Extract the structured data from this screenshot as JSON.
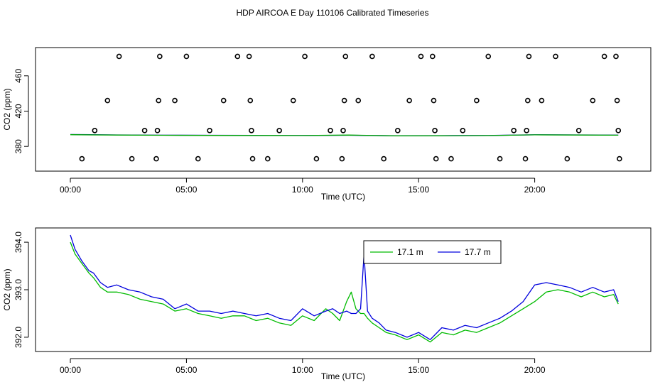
{
  "chart_data": [
    {
      "type": "scatter",
      "title": "HDP AIRCOA E  Day 110106  Calibrated Timeseries",
      "xlabel": "Time (UTC)",
      "ylabel": "CO2 (ppm)",
      "xlim": [
        -1.5,
        25.0
      ],
      "ylim": [
        352.0,
        492.0
      ],
      "x_ticks": [
        0,
        5,
        10,
        15,
        20
      ],
      "x_tick_labels": [
        "00:00",
        "05:00",
        "10:00",
        "15:00",
        "20:00"
      ],
      "y_ticks": [
        380,
        420,
        460
      ],
      "y_tick_labels": [
        "380",
        "420",
        "460"
      ],
      "marker_color": "#000000",
      "points": [
        {
          "x": 0.5,
          "y": 366
        },
        {
          "x": 1.05,
          "y": 398
        },
        {
          "x": 1.6,
          "y": 432
        },
        {
          "x": 2.1,
          "y": 482
        },
        {
          "x": 2.65,
          "y": 366
        },
        {
          "x": 3.2,
          "y": 398
        },
        {
          "x": 3.7,
          "y": 366
        },
        {
          "x": 3.75,
          "y": 398
        },
        {
          "x": 3.8,
          "y": 432
        },
        {
          "x": 3.85,
          "y": 482
        },
        {
          "x": 4.5,
          "y": 432
        },
        {
          "x": 5.0,
          "y": 482
        },
        {
          "x": 5.5,
          "y": 366
        },
        {
          "x": 6.0,
          "y": 398
        },
        {
          "x": 6.6,
          "y": 432
        },
        {
          "x": 7.2,
          "y": 482
        },
        {
          "x": 7.7,
          "y": 482
        },
        {
          "x": 7.75,
          "y": 432
        },
        {
          "x": 7.8,
          "y": 398
        },
        {
          "x": 7.85,
          "y": 366
        },
        {
          "x": 8.5,
          "y": 366
        },
        {
          "x": 9.0,
          "y": 398
        },
        {
          "x": 9.6,
          "y": 432
        },
        {
          "x": 10.1,
          "y": 482
        },
        {
          "x": 10.6,
          "y": 366
        },
        {
          "x": 11.2,
          "y": 398
        },
        {
          "x": 11.7,
          "y": 366
        },
        {
          "x": 11.75,
          "y": 398
        },
        {
          "x": 11.8,
          "y": 432
        },
        {
          "x": 11.85,
          "y": 482
        },
        {
          "x": 12.4,
          "y": 432
        },
        {
          "x": 13.0,
          "y": 482
        },
        {
          "x": 13.5,
          "y": 366
        },
        {
          "x": 14.1,
          "y": 398
        },
        {
          "x": 14.6,
          "y": 432
        },
        {
          "x": 15.1,
          "y": 482
        },
        {
          "x": 15.6,
          "y": 482
        },
        {
          "x": 15.65,
          "y": 432
        },
        {
          "x": 15.7,
          "y": 398
        },
        {
          "x": 15.75,
          "y": 366
        },
        {
          "x": 16.4,
          "y": 366
        },
        {
          "x": 16.9,
          "y": 398
        },
        {
          "x": 17.5,
          "y": 432
        },
        {
          "x": 18.0,
          "y": 482
        },
        {
          "x": 18.5,
          "y": 366
        },
        {
          "x": 19.1,
          "y": 398
        },
        {
          "x": 19.6,
          "y": 366
        },
        {
          "x": 19.65,
          "y": 398
        },
        {
          "x": 19.7,
          "y": 432
        },
        {
          "x": 19.75,
          "y": 482
        },
        {
          "x": 20.3,
          "y": 432
        },
        {
          "x": 20.9,
          "y": 482
        },
        {
          "x": 21.4,
          "y": 366
        },
        {
          "x": 21.9,
          "y": 398
        },
        {
          "x": 22.5,
          "y": 432
        },
        {
          "x": 23.0,
          "y": 482
        },
        {
          "x": 23.5,
          "y": 482
        },
        {
          "x": 23.55,
          "y": 432
        },
        {
          "x": 23.6,
          "y": 398
        },
        {
          "x": 23.65,
          "y": 366
        }
      ],
      "series": [
        {
          "color": "#0000cc",
          "x": [
            0,
            2,
            4,
            6,
            8,
            10,
            12,
            14,
            16,
            18,
            20,
            22,
            23.6
          ],
          "y": [
            393.5,
            393.0,
            392.7,
            392.6,
            392.5,
            392.4,
            392.6,
            392.1,
            392.2,
            392.4,
            393.2,
            393.0,
            392.8
          ]
        },
        {
          "color": "#00aa00",
          "x": [
            0,
            2,
            4,
            6,
            8,
            10,
            12,
            14,
            16,
            18,
            20,
            22,
            23.6
          ],
          "y": [
            393.3,
            392.9,
            392.6,
            392.5,
            392.4,
            392.3,
            392.9,
            392.0,
            392.1,
            392.3,
            393.1,
            392.9,
            392.7
          ]
        }
      ]
    },
    {
      "type": "line",
      "xlabel": "Time (UTC)",
      "ylabel": "CO2 (ppm)",
      "xlim": [
        -1.5,
        25.0
      ],
      "ylim": [
        391.7,
        394.3
      ],
      "x_ticks": [
        0,
        5,
        10,
        15,
        20
      ],
      "x_tick_labels": [
        "00:00",
        "05:00",
        "10:00",
        "15:00",
        "20:00"
      ],
      "y_ticks": [
        392.0,
        393.0,
        394.0
      ],
      "y_tick_labels": [
        "392.0",
        "393.0",
        "394.0"
      ],
      "legend": "top-center",
      "series": [
        {
          "name": "17.1 m",
          "color": "#00bb00",
          "x": [
            0,
            0.2,
            0.5,
            0.8,
            1.0,
            1.3,
            1.6,
            2.0,
            2.5,
            3.0,
            3.5,
            4.0,
            4.5,
            5.0,
            5.5,
            6.0,
            6.5,
            7.0,
            7.5,
            8.0,
            8.5,
            9.0,
            9.5,
            10.0,
            10.5,
            11.0,
            11.3,
            11.6,
            11.9,
            12.1,
            12.3,
            12.5,
            12.65,
            12.8,
            13.0,
            13.3,
            13.6,
            14.0,
            14.5,
            15.0,
            15.5,
            16.0,
            16.5,
            17.0,
            17.5,
            18.0,
            18.5,
            19.0,
            19.5,
            20.0,
            20.5,
            21.0,
            21.5,
            22.0,
            22.5,
            23.0,
            23.4,
            23.6
          ],
          "y": [
            394.0,
            393.75,
            393.55,
            393.35,
            393.25,
            393.05,
            392.95,
            392.95,
            392.9,
            392.8,
            392.75,
            392.7,
            392.55,
            392.6,
            392.5,
            392.45,
            392.4,
            392.45,
            392.45,
            392.35,
            392.4,
            392.3,
            392.25,
            392.45,
            392.35,
            392.6,
            392.5,
            392.35,
            392.75,
            392.95,
            392.6,
            392.5,
            392.5,
            392.4,
            392.3,
            392.2,
            392.1,
            392.05,
            391.95,
            392.05,
            391.9,
            392.1,
            392.05,
            392.15,
            392.1,
            392.2,
            392.3,
            392.45,
            392.6,
            392.75,
            392.95,
            393.0,
            392.95,
            392.85,
            392.95,
            392.85,
            392.9,
            392.7
          ]
        },
        {
          "name": "17.7 m",
          "color": "#0000dd",
          "x": [
            0,
            0.2,
            0.5,
            0.8,
            1.0,
            1.3,
            1.6,
            2.0,
            2.5,
            3.0,
            3.5,
            4.0,
            4.5,
            5.0,
            5.5,
            6.0,
            6.5,
            7.0,
            7.5,
            8.0,
            8.5,
            9.0,
            9.5,
            10.0,
            10.5,
            11.0,
            11.3,
            11.6,
            11.9,
            12.1,
            12.3,
            12.5,
            12.65,
            12.8,
            13.0,
            13.3,
            13.6,
            14.0,
            14.5,
            15.0,
            15.5,
            16.0,
            16.5,
            17.0,
            17.5,
            18.0,
            18.5,
            19.0,
            19.5,
            20.0,
            20.5,
            21.0,
            21.5,
            22.0,
            22.5,
            23.0,
            23.4,
            23.6
          ],
          "y": [
            394.15,
            393.85,
            393.6,
            393.4,
            393.35,
            393.15,
            393.05,
            393.1,
            393.0,
            392.95,
            392.85,
            392.8,
            392.6,
            392.7,
            392.55,
            392.55,
            392.5,
            392.55,
            392.5,
            392.45,
            392.5,
            392.4,
            392.35,
            392.6,
            392.45,
            392.55,
            392.6,
            392.5,
            392.55,
            392.5,
            392.5,
            392.6,
            393.75,
            392.55,
            392.4,
            392.3,
            392.15,
            392.1,
            392.0,
            392.1,
            391.95,
            392.2,
            392.15,
            392.25,
            392.2,
            392.3,
            392.4,
            392.55,
            392.75,
            393.1,
            393.15,
            393.1,
            393.05,
            392.95,
            393.05,
            392.95,
            393.0,
            392.75
          ]
        }
      ]
    }
  ]
}
